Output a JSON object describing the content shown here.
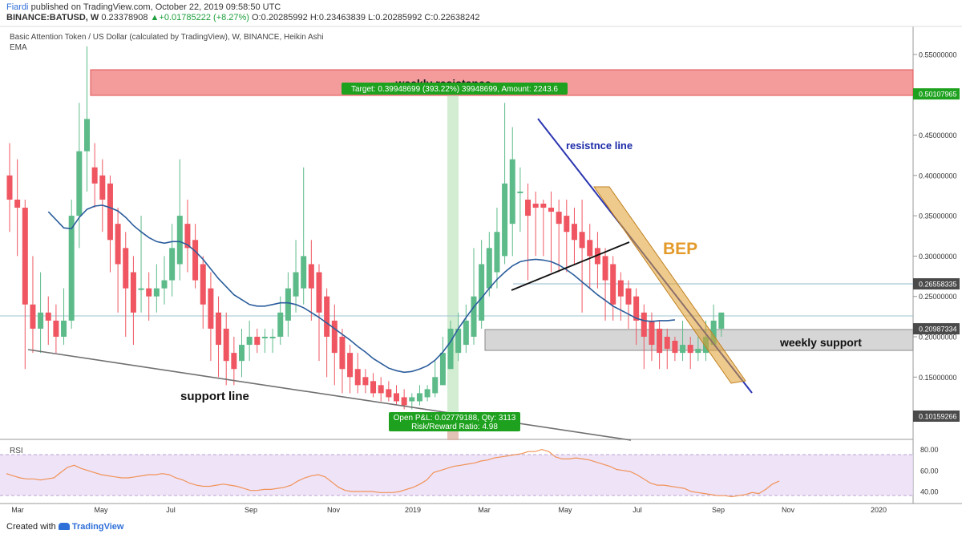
{
  "header": {
    "author": "Fiardi",
    "published": "published on TradingView.com, October 22, 2019 09:58:50 UTC",
    "symbol": "BINANCE:BATUSD, W",
    "last": "0.23378908",
    "change": "+0.01785222 (+8.27%)",
    "open": "O:0.20285992",
    "high": "H:0.23463839",
    "low": "L:0.20285992",
    "close": "C:0.22638242"
  },
  "title": "Basic Attention Token / US Dollar (calculated by TradingView), W, BINANCE, Heikin Ashi",
  "indicator": "EMA",
  "rsi_label": "RSI",
  "footer": {
    "created": "Created with",
    "brand": "TradingView"
  },
  "colors": {
    "up": "#5dbb8a",
    "down": "#ef5661",
    "ema": "#2b5d9c",
    "rsi": "#f09357",
    "resist": "#f08080",
    "support": "#c8c8c8",
    "target_box": "#1ea11e",
    "bep": "#e0a030"
  },
  "price_axis": {
    "ticks": [
      "0.55000000",
      "0.50107965",
      "0.45000000",
      "0.40000000",
      "0.35000000",
      "0.30000000",
      "0.26558335",
      "0.25000000",
      "0.20987334",
      "0.20000000",
      "0.15000000",
      "0.10159266"
    ],
    "tick_values": [
      0.55,
      0.50107965,
      0.45,
      0.4,
      0.35,
      0.3,
      0.26558335,
      0.25,
      0.20987334,
      0.2,
      0.15,
      0.10159266
    ],
    "highlighted": [
      "0.50107965",
      "0.26558335",
      "0.20987334",
      "0.10159266"
    ]
  },
  "rsi_axis": {
    "ticks": [
      "80.00",
      "60.00",
      "40.00"
    ],
    "tick_values": [
      80,
      60,
      40
    ]
  },
  "time_axis": {
    "labels": [
      "Mar",
      "May",
      "Jul",
      "Sep",
      "Nov",
      "2019",
      "Mar",
      "May",
      "Jul",
      "Sep",
      "Nov",
      "2020"
    ]
  },
  "annotations": {
    "weekly_resistance": "weekly resistance",
    "target": "Target: 0.39948699 (393.22%) 39948699, Amount: 2243.6",
    "pnl_line1": "Open P&L: 0.02779188, Qty: 3113",
    "pnl_line2": "Risk/Reward Ratio: 4.98",
    "resistance_line": "resistnce line",
    "bep": "BEP",
    "weekly_support": "weekly support",
    "support_line": "support line"
  },
  "chart_data": {
    "type": "candlestick",
    "series_name": "BATUSD Heikin Ashi, W",
    "ylim": [
      0.08,
      0.57
    ],
    "candles": [
      {
        "o": 0.4,
        "c": 0.37,
        "h": 0.44,
        "l": 0.33
      },
      {
        "o": 0.37,
        "c": 0.36,
        "h": 0.42,
        "l": 0.3
      },
      {
        "o": 0.36,
        "c": 0.24,
        "h": 0.37,
        "l": 0.16
      },
      {
        "o": 0.24,
        "c": 0.21,
        "h": 0.3,
        "l": 0.18
      },
      {
        "o": 0.21,
        "c": 0.23,
        "h": 0.28,
        "l": 0.18
      },
      {
        "o": 0.23,
        "c": 0.22,
        "h": 0.25,
        "l": 0.19
      },
      {
        "o": 0.22,
        "c": 0.2,
        "h": 0.24,
        "l": 0.18
      },
      {
        "o": 0.2,
        "c": 0.22,
        "h": 0.26,
        "l": 0.19
      },
      {
        "o": 0.22,
        "c": 0.35,
        "h": 0.37,
        "l": 0.21
      },
      {
        "o": 0.35,
        "c": 0.43,
        "h": 0.49,
        "l": 0.31
      },
      {
        "o": 0.43,
        "c": 0.47,
        "h": 0.56,
        "l": 0.38
      },
      {
        "o": 0.41,
        "c": 0.39,
        "h": 0.44,
        "l": 0.36
      },
      {
        "o": 0.4,
        "c": 0.37,
        "h": 0.42,
        "l": 0.33
      },
      {
        "o": 0.39,
        "c": 0.32,
        "h": 0.4,
        "l": 0.28
      },
      {
        "o": 0.34,
        "c": 0.29,
        "h": 0.36,
        "l": 0.23
      },
      {
        "o": 0.31,
        "c": 0.26,
        "h": 0.33,
        "l": 0.2
      },
      {
        "o": 0.28,
        "c": 0.23,
        "h": 0.3,
        "l": 0.19
      },
      {
        "o": 0.26,
        "c": 0.26,
        "h": 0.35,
        "l": 0.23
      },
      {
        "o": 0.26,
        "c": 0.25,
        "h": 0.28,
        "l": 0.22
      },
      {
        "o": 0.25,
        "c": 0.26,
        "h": 0.29,
        "l": 0.23
      },
      {
        "o": 0.26,
        "c": 0.27,
        "h": 0.3,
        "l": 0.24
      },
      {
        "o": 0.27,
        "c": 0.31,
        "h": 0.34,
        "l": 0.25
      },
      {
        "o": 0.29,
        "c": 0.35,
        "h": 0.42,
        "l": 0.27
      },
      {
        "o": 0.34,
        "c": 0.31,
        "h": 0.37,
        "l": 0.28
      },
      {
        "o": 0.32,
        "c": 0.27,
        "h": 0.34,
        "l": 0.26
      },
      {
        "o": 0.29,
        "c": 0.24,
        "h": 0.3,
        "l": 0.21
      },
      {
        "o": 0.26,
        "c": 0.21,
        "h": 0.28,
        "l": 0.17
      },
      {
        "o": 0.23,
        "c": 0.19,
        "h": 0.25,
        "l": 0.15
      },
      {
        "o": 0.21,
        "c": 0.17,
        "h": 0.23,
        "l": 0.14
      },
      {
        "o": 0.18,
        "c": 0.16,
        "h": 0.2,
        "l": 0.14
      },
      {
        "o": 0.17,
        "c": 0.19,
        "h": 0.21,
        "l": 0.15
      },
      {
        "o": 0.19,
        "c": 0.2,
        "h": 0.22,
        "l": 0.17
      },
      {
        "o": 0.2,
        "c": 0.19,
        "h": 0.21,
        "l": 0.18
      },
      {
        "o": 0.2,
        "c": 0.2,
        "h": 0.21,
        "l": 0.18
      },
      {
        "o": 0.2,
        "c": 0.2,
        "h": 0.21,
        "l": 0.18
      },
      {
        "o": 0.2,
        "c": 0.23,
        "h": 0.25,
        "l": 0.19
      },
      {
        "o": 0.22,
        "c": 0.26,
        "h": 0.28,
        "l": 0.2
      },
      {
        "o": 0.25,
        "c": 0.28,
        "h": 0.32,
        "l": 0.23
      },
      {
        "o": 0.26,
        "c": 0.3,
        "h": 0.41,
        "l": 0.24
      },
      {
        "o": 0.29,
        "c": 0.26,
        "h": 0.32,
        "l": 0.22
      },
      {
        "o": 0.28,
        "c": 0.23,
        "h": 0.29,
        "l": 0.17
      },
      {
        "o": 0.25,
        "c": 0.2,
        "h": 0.26,
        "l": 0.15
      },
      {
        "o": 0.22,
        "c": 0.18,
        "h": 0.24,
        "l": 0.14
      },
      {
        "o": 0.2,
        "c": 0.16,
        "h": 0.21,
        "l": 0.13
      },
      {
        "o": 0.18,
        "c": 0.15,
        "h": 0.19,
        "l": 0.13
      },
      {
        "o": 0.16,
        "c": 0.14,
        "h": 0.18,
        "l": 0.13
      },
      {
        "o": 0.15,
        "c": 0.14,
        "h": 0.16,
        "l": 0.13
      },
      {
        "o": 0.145,
        "c": 0.13,
        "h": 0.155,
        "l": 0.125
      },
      {
        "o": 0.14,
        "c": 0.13,
        "h": 0.15,
        "l": 0.12
      },
      {
        "o": 0.135,
        "c": 0.125,
        "h": 0.145,
        "l": 0.12
      },
      {
        "o": 0.13,
        "c": 0.12,
        "h": 0.14,
        "l": 0.115
      },
      {
        "o": 0.125,
        "c": 0.115,
        "h": 0.135,
        "l": 0.11
      },
      {
        "o": 0.12,
        "c": 0.125,
        "h": 0.13,
        "l": 0.11
      },
      {
        "o": 0.12,
        "c": 0.13,
        "h": 0.14,
        "l": 0.115
      },
      {
        "o": 0.125,
        "c": 0.135,
        "h": 0.14,
        "l": 0.12
      },
      {
        "o": 0.13,
        "c": 0.15,
        "h": 0.17,
        "l": 0.125
      },
      {
        "o": 0.14,
        "c": 0.18,
        "h": 0.2,
        "l": 0.14
      },
      {
        "o": 0.16,
        "c": 0.21,
        "h": 0.22,
        "l": 0.16
      },
      {
        "o": 0.18,
        "c": 0.21,
        "h": 0.23,
        "l": 0.17
      },
      {
        "o": 0.19,
        "c": 0.22,
        "h": 0.24,
        "l": 0.18
      },
      {
        "o": 0.2,
        "c": 0.25,
        "h": 0.31,
        "l": 0.19
      },
      {
        "o": 0.22,
        "c": 0.29,
        "h": 0.32,
        "l": 0.21
      },
      {
        "o": 0.26,
        "c": 0.31,
        "h": 0.33,
        "l": 0.25
      },
      {
        "o": 0.28,
        "c": 0.33,
        "h": 0.36,
        "l": 0.26
      },
      {
        "o": 0.3,
        "c": 0.39,
        "h": 0.49,
        "l": 0.29
      },
      {
        "o": 0.34,
        "c": 0.42,
        "h": 0.46,
        "l": 0.3
      },
      {
        "o": 0.38,
        "c": 0.38,
        "h": 0.41,
        "l": 0.33
      },
      {
        "o": 0.37,
        "c": 0.35,
        "h": 0.39,
        "l": 0.27
      },
      {
        "o": 0.365,
        "c": 0.36,
        "h": 0.38,
        "l": 0.3
      },
      {
        "o": 0.365,
        "c": 0.36,
        "h": 0.37,
        "l": 0.3
      },
      {
        "o": 0.36,
        "c": 0.355,
        "h": 0.38,
        "l": 0.28
      },
      {
        "o": 0.355,
        "c": 0.34,
        "h": 0.37,
        "l": 0.28
      },
      {
        "o": 0.35,
        "c": 0.33,
        "h": 0.37,
        "l": 0.28
      },
      {
        "o": 0.34,
        "c": 0.32,
        "h": 0.36,
        "l": 0.29
      },
      {
        "o": 0.33,
        "c": 0.31,
        "h": 0.37,
        "l": 0.23
      },
      {
        "o": 0.32,
        "c": 0.3,
        "h": 0.34,
        "l": 0.26
      },
      {
        "o": 0.31,
        "c": 0.29,
        "h": 0.33,
        "l": 0.26
      },
      {
        "o": 0.3,
        "c": 0.27,
        "h": 0.31,
        "l": 0.22
      },
      {
        "o": 0.29,
        "c": 0.24,
        "h": 0.3,
        "l": 0.22
      },
      {
        "o": 0.27,
        "c": 0.25,
        "h": 0.28,
        "l": 0.22
      },
      {
        "o": 0.26,
        "c": 0.24,
        "h": 0.27,
        "l": 0.21
      },
      {
        "o": 0.25,
        "c": 0.22,
        "h": 0.26,
        "l": 0.19
      },
      {
        "o": 0.23,
        "c": 0.2,
        "h": 0.24,
        "l": 0.16
      },
      {
        "o": 0.22,
        "c": 0.19,
        "h": 0.23,
        "l": 0.17
      },
      {
        "o": 0.21,
        "c": 0.18,
        "h": 0.22,
        "l": 0.16
      },
      {
        "o": 0.2,
        "c": 0.185,
        "h": 0.21,
        "l": 0.16
      },
      {
        "o": 0.195,
        "c": 0.18,
        "h": 0.2,
        "l": 0.17
      },
      {
        "o": 0.18,
        "c": 0.19,
        "h": 0.22,
        "l": 0.17
      },
      {
        "o": 0.19,
        "c": 0.18,
        "h": 0.2,
        "l": 0.16
      },
      {
        "o": 0.18,
        "c": 0.185,
        "h": 0.2,
        "l": 0.17
      },
      {
        "o": 0.18,
        "c": 0.2,
        "h": 0.22,
        "l": 0.17
      },
      {
        "o": 0.19,
        "c": 0.22,
        "h": 0.24,
        "l": 0.19
      },
      {
        "o": 0.21,
        "c": 0.23,
        "h": 0.23,
        "l": 0.2
      }
    ],
    "ema": [
      0.355,
      0.345,
      0.335,
      0.334,
      0.348,
      0.358,
      0.362,
      0.363,
      0.36,
      0.356,
      0.348,
      0.338,
      0.33,
      0.323,
      0.318,
      0.316,
      0.318,
      0.318,
      0.314,
      0.306,
      0.296,
      0.284,
      0.272,
      0.262,
      0.252,
      0.246,
      0.24,
      0.238,
      0.238,
      0.24,
      0.242,
      0.242,
      0.24,
      0.236,
      0.23,
      0.224,
      0.217,
      0.21,
      0.203,
      0.196,
      0.188,
      0.181,
      0.173,
      0.167,
      0.161,
      0.158,
      0.156,
      0.157,
      0.16,
      0.164,
      0.171,
      0.181,
      0.194,
      0.21,
      0.224,
      0.237,
      0.248,
      0.26,
      0.271,
      0.28,
      0.288,
      0.293,
      0.295,
      0.296,
      0.295,
      0.293,
      0.289,
      0.283,
      0.276,
      0.268,
      0.26,
      0.252,
      0.245,
      0.238,
      0.233,
      0.228,
      0.223,
      0.22,
      0.219,
      0.22,
      0.22,
      0.221
    ],
    "rsi": [
      57,
      55,
      53,
      52,
      52,
      51,
      52,
      53,
      58,
      63,
      65,
      62,
      60,
      58,
      56,
      55,
      54,
      53,
      53,
      54,
      55,
      56,
      56,
      57,
      56,
      53,
      51,
      48,
      46,
      45,
      45,
      46,
      47,
      46,
      45,
      43,
      41,
      41,
      42,
      42,
      43,
      44,
      46,
      50,
      53,
      55,
      56,
      54,
      49,
      44,
      41,
      40,
      40,
      40,
      40,
      39,
      39,
      39,
      40,
      42,
      44,
      47,
      51,
      58,
      60,
      62,
      64,
      65,
      66,
      67,
      69,
      70,
      72,
      73,
      74,
      75,
      76,
      78,
      78,
      80,
      78,
      73,
      71,
      71,
      72,
      71,
      70,
      68,
      66,
      64,
      61,
      60,
      59,
      56,
      52,
      48,
      46,
      46,
      45,
      44,
      43,
      40,
      39,
      38,
      37,
      36,
      36,
      35,
      36,
      37,
      39,
      38,
      42,
      47,
      50
    ]
  }
}
